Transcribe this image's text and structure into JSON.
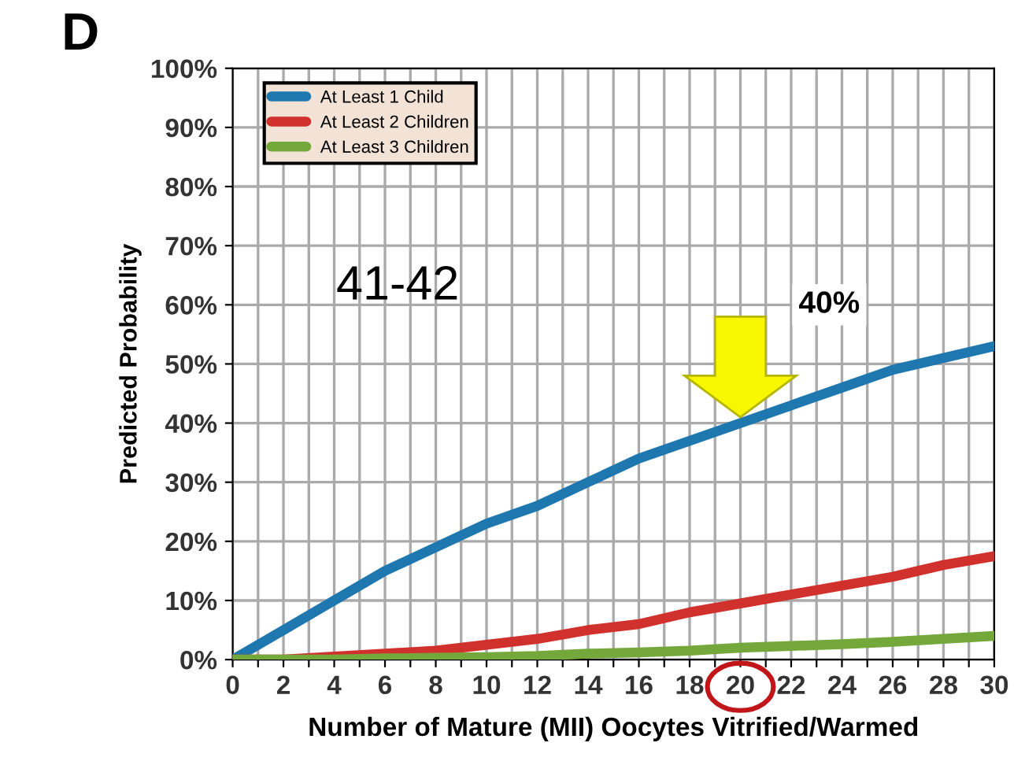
{
  "chart_data": {
    "type": "line",
    "title": "D",
    "xlabel": "Number of Mature (MII) Oocytes Vitrified/Warmed",
    "ylabel": "Predicted Probability",
    "x": [
      0,
      2,
      4,
      6,
      8,
      10,
      12,
      14,
      16,
      18,
      20,
      22,
      24,
      26,
      28,
      30
    ],
    "series": [
      {
        "name": "At Least 1 Child",
        "color": "#1f77b0",
        "values": [
          0,
          5,
          10,
          15,
          19,
          23,
          26,
          30,
          34,
          37,
          40,
          43,
          46,
          49,
          51,
          53
        ]
      },
      {
        "name": "At Least 2 Children",
        "color": "#d0312d",
        "values": [
          0,
          0,
          0.5,
          1,
          1.5,
          2.5,
          3.5,
          5,
          6,
          8,
          9.5,
          11,
          12.5,
          14,
          16,
          17.5
        ]
      },
      {
        "name": "At Least 3 Children",
        "color": "#74a83a",
        "values": [
          0,
          0,
          0,
          0.2,
          0.3,
          0.4,
          0.6,
          1,
          1.2,
          1.5,
          2,
          2.3,
          2.6,
          3,
          3.5,
          4
        ]
      }
    ],
    "xlim": [
      0,
      30
    ],
    "ylim": [
      0,
      100
    ],
    "xticks": [
      0,
      {
        "value": 1,
        "label": null
      },
      2,
      {
        "value": 3,
        "label": null
      },
      4,
      {
        "value": 5,
        "label": null
      },
      6,
      {
        "value": 7,
        "label": null
      },
      8,
      {
        "value": 9,
        "label": null
      },
      10,
      {
        "value": 11,
        "label": null
      },
      12,
      {
        "value": 13,
        "label": null
      },
      14,
      {
        "value": 15,
        "label": null
      },
      16,
      {
        "value": 17,
        "label": null
      },
      18,
      {
        "value": 19,
        "label": null
      },
      20,
      {
        "value": 21,
        "label": null
      },
      22,
      {
        "value": 23,
        "label": null
      },
      24,
      {
        "value": 25,
        "label": null
      },
      26,
      {
        "value": 27,
        "label": null
      },
      28,
      {
        "value": 29,
        "label": null
      },
      30
    ],
    "yticks": [
      {
        "value": 0,
        "label": "0%"
      },
      {
        "value": 10,
        "label": "10%"
      },
      {
        "value": 20,
        "label": "20%"
      },
      {
        "value": 30,
        "label": "30%"
      },
      {
        "value": 40,
        "label": "40%"
      },
      {
        "value": 50,
        "label": "50%"
      },
      {
        "value": 60,
        "label": "60%"
      },
      {
        "value": 70,
        "label": "70%"
      },
      {
        "value": 80,
        "label": "80%"
      },
      {
        "value": 90,
        "label": "90%"
      },
      {
        "value": 100,
        "label": "100%"
      }
    ],
    "annotations": [
      "41-42",
      "40%"
    ],
    "grid": true,
    "legend": "top left",
    "marker": "none",
    "line_style": "solid"
  }
}
